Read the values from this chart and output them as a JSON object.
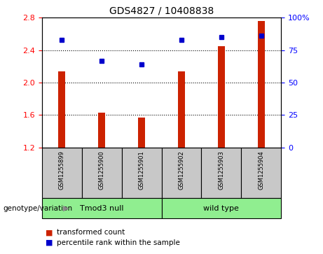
{
  "title": "GDS4827 / 10408838",
  "samples": [
    "GSM1255899",
    "GSM1255900",
    "GSM1255901",
    "GSM1255902",
    "GSM1255903",
    "GSM1255904"
  ],
  "bar_values": [
    2.14,
    1.63,
    1.57,
    2.14,
    2.45,
    2.76
  ],
  "dot_values": [
    83,
    67,
    64,
    83,
    85,
    86
  ],
  "bar_color": "#cc2200",
  "dot_color": "#0000cc",
  "ylim_left": [
    1.2,
    2.8
  ],
  "ylim_right": [
    0,
    100
  ],
  "yticks_left": [
    1.2,
    1.6,
    2.0,
    2.4,
    2.8
  ],
  "yticks_right": [
    0,
    25,
    50,
    75,
    100
  ],
  "ytick_labels_right": [
    "0",
    "25",
    "50",
    "75",
    "100%"
  ],
  "gridlines": [
    1.6,
    2.0,
    2.4
  ],
  "groups": [
    {
      "label": "Tmod3 null",
      "start": 0,
      "end": 3,
      "color": "#90ee90"
    },
    {
      "label": "wild type",
      "start": 3,
      "end": 6,
      "color": "#90ee90"
    }
  ],
  "group_label": "genotype/variation",
  "legend_bar": "transformed count",
  "legend_dot": "percentile rank within the sample",
  "bar_width": 0.18,
  "background_color": "#ffffff",
  "plot_bg": "#ffffff",
  "sample_box_color": "#c8c8c8",
  "group_box_color": "#90ee90",
  "title_fontsize": 10,
  "tick_fontsize": 8,
  "sample_fontsize": 6,
  "legend_fontsize": 7.5
}
